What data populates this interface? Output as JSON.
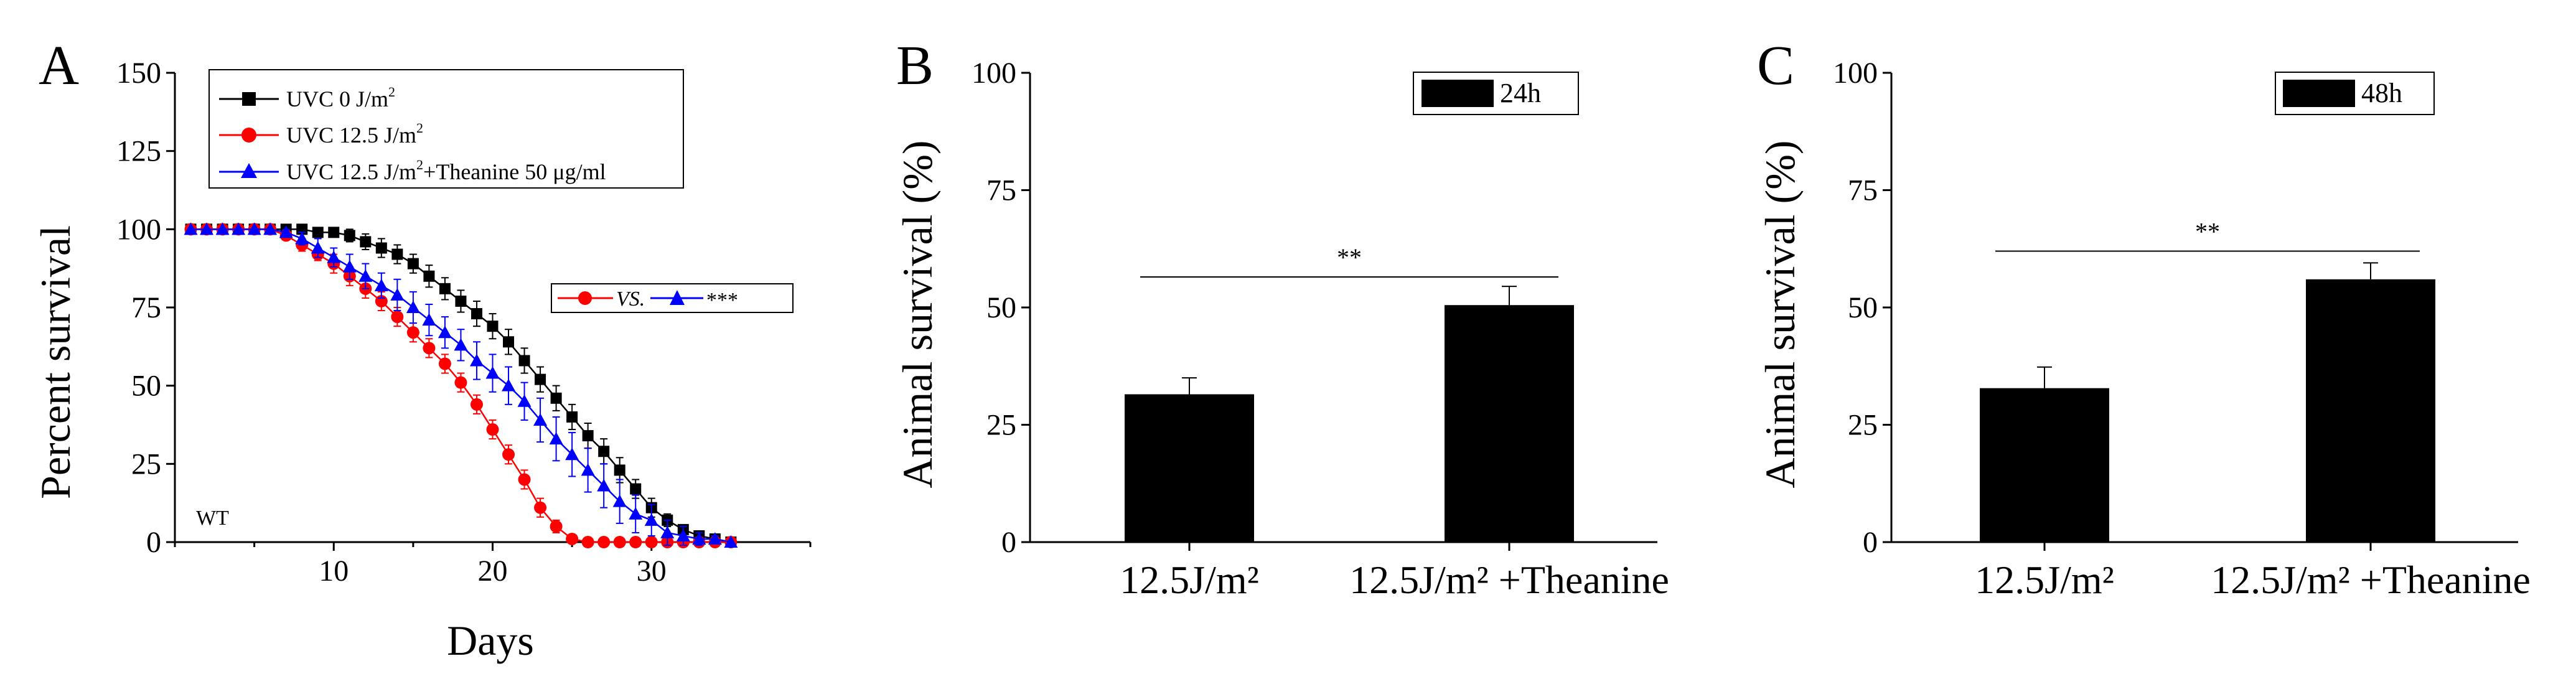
{
  "colors": {
    "black": "#000000",
    "red": "#ff0000",
    "blue": "#0000ff"
  },
  "chart_data": [
    {
      "panel": "A",
      "type": "line",
      "xlabel": "Days",
      "ylabel": "Percent survival",
      "annotation": "WT",
      "xlim": [
        0,
        40
      ],
      "ylim": [
        0,
        150
      ],
      "xticks": [
        10,
        20,
        30
      ],
      "yticks": [
        0,
        25,
        50,
        75,
        100,
        125,
        150
      ],
      "legend_location": "top-left",
      "legend": [
        {
          "marker": "square",
          "color": "#000000",
          "text": "UVC 0 J/m",
          "sup": "2",
          "tail": ""
        },
        {
          "marker": "circle",
          "color": "#ff0000",
          "text": "UVC 12.5 J/m",
          "sup": "2",
          "tail": ""
        },
        {
          "marker": "triangle",
          "color": "#0000ff",
          "text": "UVC 12.5 J/m",
          "sup": "2",
          "tail": "+Theanine 50 μg/ml"
        }
      ],
      "comparison": {
        "left_color": "#ff0000",
        "vs": "VS.",
        "right_color": "#0000ff",
        "stars": "***"
      },
      "series": [
        {
          "marker": "square",
          "color": "#000000",
          "x": [
            1,
            2,
            3,
            4,
            5,
            6,
            7,
            8,
            9,
            10,
            11,
            12,
            13,
            14,
            15,
            16,
            17,
            18,
            19,
            20,
            21,
            22,
            23,
            24,
            25,
            26,
            27,
            28,
            29,
            30,
            31,
            32,
            33,
            34,
            35
          ],
          "y": [
            100,
            100,
            100,
            100,
            100,
            100,
            100,
            100,
            99,
            99,
            98,
            96,
            94,
            92,
            89,
            85,
            81,
            77,
            73,
            69,
            64,
            58,
            52,
            46,
            40,
            34,
            29,
            23,
            17,
            11,
            7,
            4,
            2,
            1,
            0
          ],
          "err": [
            0,
            0,
            0,
            0,
            0,
            0,
            0,
            1,
            1,
            1.5,
            2,
            2.5,
            3,
            3,
            3,
            3.5,
            3.5,
            3.5,
            4,
            4,
            4,
            4,
            4,
            4,
            4,
            4,
            4,
            4,
            3,
            3,
            2,
            1.5,
            1,
            0.5,
            0
          ]
        },
        {
          "marker": "circle",
          "color": "#ff0000",
          "x": [
            1,
            2,
            3,
            4,
            5,
            6,
            7,
            8,
            9,
            10,
            11,
            12,
            13,
            14,
            15,
            16,
            17,
            18,
            19,
            20,
            21,
            22,
            23,
            24,
            25,
            26,
            27,
            28,
            29,
            30,
            31,
            32,
            33,
            34,
            35
          ],
          "y": [
            100,
            100,
            100,
            100,
            100,
            100,
            98,
            95,
            92,
            89,
            85,
            81,
            77,
            72,
            67,
            62,
            57,
            51,
            44,
            36,
            28,
            20,
            11,
            5,
            1,
            0,
            0,
            0,
            0,
            0,
            0,
            0,
            0,
            0,
            0
          ],
          "err": [
            0,
            0,
            0,
            0,
            0,
            0,
            1,
            2,
            2,
            3,
            3,
            3,
            3,
            3,
            3,
            3,
            3,
            3,
            3,
            3,
            3,
            3,
            3,
            2,
            1,
            0,
            0,
            0,
            0,
            0,
            0,
            0,
            0,
            0,
            0
          ]
        },
        {
          "marker": "triangle",
          "color": "#0000ff",
          "x": [
            1,
            2,
            3,
            4,
            5,
            6,
            7,
            8,
            9,
            10,
            11,
            12,
            13,
            14,
            15,
            16,
            17,
            18,
            19,
            20,
            21,
            22,
            23,
            24,
            25,
            26,
            27,
            28,
            29,
            30,
            31,
            32,
            33,
            34,
            35
          ],
          "y": [
            100,
            100,
            100,
            100,
            100,
            100,
            99,
            97,
            94,
            91,
            88,
            85,
            82,
            79,
            75,
            71,
            67,
            63,
            58,
            54,
            50,
            45,
            39,
            33,
            28,
            23,
            18,
            13,
            9,
            7,
            3,
            2,
            1,
            1,
            0
          ],
          "err": [
            0,
            0,
            0,
            0,
            0,
            0,
            1,
            2,
            3,
            3,
            4,
            4,
            4,
            5,
            5,
            5,
            5,
            5,
            6,
            6,
            6,
            6,
            7,
            7,
            7,
            7,
            7,
            7,
            6,
            5,
            4,
            3,
            2,
            1,
            0
          ]
        }
      ]
    },
    {
      "panel": "B",
      "type": "bar",
      "ylabel": "Animal survival (%)",
      "ylim": [
        0,
        100
      ],
      "yticks": [
        0,
        25,
        50,
        75,
        100
      ],
      "categories": [
        "12.5J/m²",
        "12.5J/m² +Theanine"
      ],
      "values": [
        31.5,
        50.5
      ],
      "errors": [
        3.5,
        4
      ],
      "legend": "24h",
      "significance": {
        "text": "**",
        "y": 56.5
      }
    },
    {
      "panel": "C",
      "type": "bar",
      "ylabel": "Animal survival (%)",
      "ylim": [
        0,
        100
      ],
      "yticks": [
        0,
        25,
        50,
        75,
        100
      ],
      "categories": [
        "12.5J/m²",
        "12.5J/m² +Theanine"
      ],
      "values": [
        32.8,
        56
      ],
      "errors": [
        4.5,
        3.5
      ],
      "legend": "48h",
      "significance": {
        "text": "**",
        "y": 62
      }
    }
  ]
}
